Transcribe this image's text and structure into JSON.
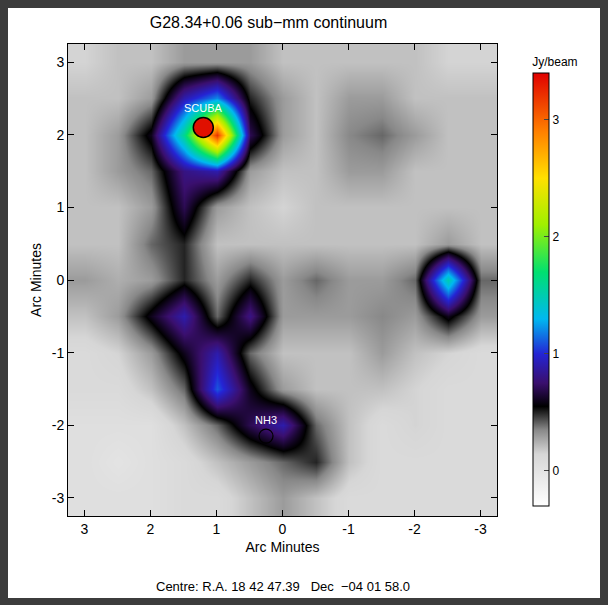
{
  "chart_data": {
    "type": "heatmap",
    "title": "G28.34+0.06 sub−mm continuum",
    "x_label": "Arc Minutes",
    "y_label": "Arc Minutes",
    "caption": "Centre: R.A. 18 42 47.39   Dec  −04 01 58.0",
    "x": [
      3,
      2.5,
      2,
      1.5,
      1,
      0.5,
      0,
      -0.5,
      -1,
      -1.5,
      -2,
      -2.5,
      -3
    ],
    "y": [
      -3,
      -2.5,
      -2,
      -1.5,
      -1,
      -0.5,
      0,
      0.5,
      1,
      1.5,
      2,
      2.5,
      3
    ],
    "z": [
      [
        0.05,
        0.05,
        0.05,
        0.1,
        0.1,
        0.2,
        0.3,
        0.2,
        0.1,
        0.1,
        0.1,
        0.1,
        0.1
      ],
      [
        0.05,
        0.0,
        0.05,
        0.1,
        0.2,
        0.3,
        0.4,
        0.5,
        0.2,
        0.1,
        0.1,
        0.1,
        0.1
      ],
      [
        0.05,
        0.05,
        0.05,
        0.2,
        0.4,
        0.7,
        0.9,
        0.4,
        0.2,
        0.1,
        0.15,
        0.1,
        0.1
      ],
      [
        0.1,
        0.1,
        0.2,
        0.4,
        1.1,
        0.6,
        0.3,
        0.2,
        0.2,
        0.2,
        0.15,
        0.1,
        0.1
      ],
      [
        0.1,
        0.15,
        0.3,
        0.6,
        0.9,
        0.4,
        0.2,
        0.2,
        0.2,
        0.3,
        0.2,
        0.15,
        0.1
      ],
      [
        0.2,
        0.3,
        0.6,
        0.9,
        0.4,
        0.8,
        0.3,
        0.3,
        0.3,
        0.35,
        0.3,
        0.6,
        0.3
      ],
      [
        0.3,
        0.25,
        0.3,
        0.5,
        0.3,
        0.5,
        0.3,
        0.4,
        0.3,
        0.3,
        0.4,
        1.5,
        0.4
      ],
      [
        0.2,
        0.2,
        0.4,
        0.5,
        0.2,
        0.2,
        0.2,
        0.2,
        0.2,
        0.2,
        0.2,
        0.3,
        0.2
      ],
      [
        0.2,
        0.2,
        0.3,
        0.7,
        0.3,
        0.2,
        0.15,
        0.2,
        0.2,
        0.2,
        0.2,
        0.2,
        0.2
      ],
      [
        0.2,
        0.3,
        0.4,
        0.8,
        0.9,
        0.3,
        0.2,
        0.2,
        0.3,
        0.3,
        0.2,
        0.2,
        0.2
      ],
      [
        0.2,
        0.3,
        0.6,
        1.6,
        3.2,
        0.7,
        0.3,
        0.2,
        0.35,
        0.4,
        0.3,
        0.2,
        0.2
      ],
      [
        0.2,
        0.2,
        0.3,
        0.9,
        1.2,
        0.5,
        0.3,
        0.2,
        0.3,
        0.3,
        0.2,
        0.2,
        0.2
      ],
      [
        0.15,
        0.2,
        0.2,
        0.3,
        0.3,
        0.3,
        0.2,
        0.2,
        0.2,
        0.2,
        0.2,
        0.15,
        0.15
      ]
    ],
    "xlim": [
      3.25,
      -3.25
    ],
    "ylim": [
      -3.25,
      3.25
    ],
    "xticks": [
      3,
      2,
      1,
      0,
      -1,
      -2,
      -3
    ],
    "yticks": [
      -3,
      -2,
      -1,
      0,
      1,
      2,
      3
    ],
    "colorbar": {
      "title": "Jy/beam",
      "range": [
        -0.3,
        3.4
      ],
      "ticks": [
        0,
        1,
        2,
        3
      ]
    },
    "markers": [
      {
        "label": "SCUBA",
        "x": 1.2,
        "y": 2.1,
        "marker": "filled circle"
      },
      {
        "label": "NH3",
        "x": 0.25,
        "y": -2.15,
        "marker": "open circle"
      }
    ]
  }
}
